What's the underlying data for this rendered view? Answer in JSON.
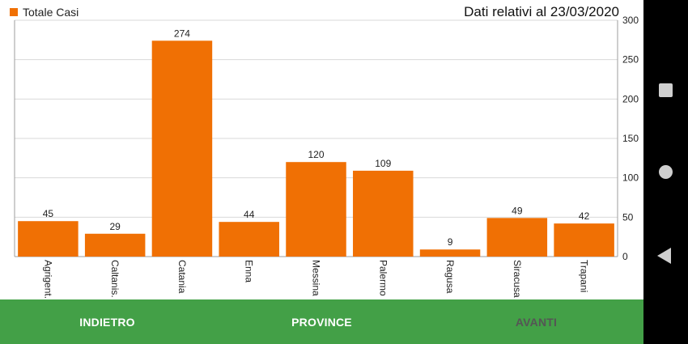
{
  "colors": {
    "bar": "#f07004",
    "bottom_bar": "#43a047",
    "nav_text_active": "#ffffff",
    "nav_text_disabled": "#555555",
    "system_nav": "#000000"
  },
  "legend": {
    "label": "Totale Casi"
  },
  "date_label": "Dati relativi al 23/03/2020",
  "chart_data": {
    "type": "bar",
    "title": "",
    "categories": [
      "Agrigent.",
      "Caltanis.",
      "Catania",
      "Enna",
      "Messina",
      "Palermo",
      "Ragusa",
      "Siracusa",
      "Trapani"
    ],
    "series": [
      {
        "name": "Totale Casi",
        "values": [
          45,
          29,
          274,
          44,
          120,
          109,
          9,
          49,
          42
        ]
      }
    ],
    "data_labels": [
      "45",
      "29",
      "274",
      "44",
      "120",
      "109",
      "9",
      "49",
      "42"
    ],
    "ylim": [
      0,
      300
    ],
    "yticks": [
      "0",
      "50",
      "100",
      "150",
      "200",
      "250",
      "300"
    ],
    "y_axis_side": "right",
    "grid": true,
    "legend_position": "top-left",
    "x_label_rotation": "vertical"
  },
  "bottom_nav": {
    "back_label": "INDIETRO",
    "center_label": "PROVINCE",
    "next_label": "AVANTI"
  },
  "system_nav": {
    "icons": [
      "recents-square-icon",
      "home-circle-icon",
      "back-triangle-icon"
    ]
  }
}
